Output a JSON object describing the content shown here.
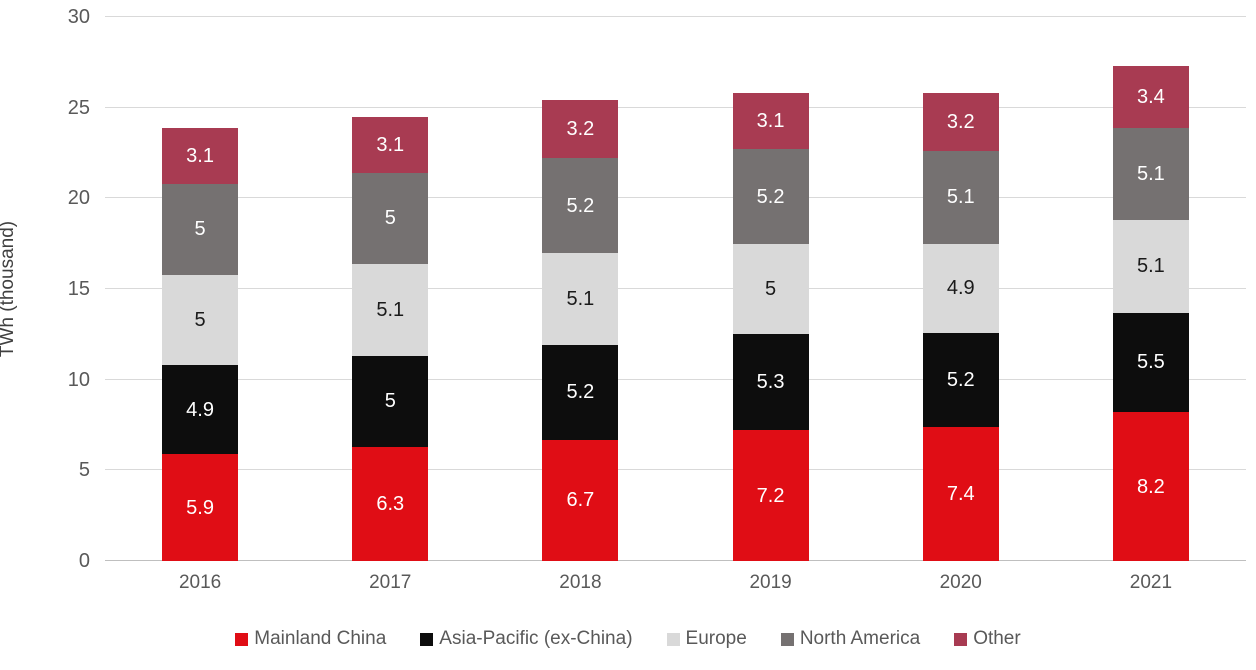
{
  "chart_data": {
    "type": "bar",
    "stacked": true,
    "title": "",
    "xlabel": "",
    "ylabel": "TWh (thousand)",
    "ylim": [
      0,
      30
    ],
    "ytick_step": 5,
    "yticks": [
      "0",
      "5",
      "10",
      "15",
      "20",
      "25",
      "30"
    ],
    "grid": true,
    "legend_position": "bottom",
    "categories": [
      "2016",
      "2017",
      "2018",
      "2019",
      "2020",
      "2021"
    ],
    "series": [
      {
        "name": "Mainland China",
        "color": "#e00d15",
        "label_color": "#ffffff",
        "values": [
          5.9,
          6.3,
          6.7,
          7.2,
          7.4,
          8.2
        ],
        "labels": [
          "5.9",
          "6.3",
          "6.7",
          "7.2",
          "7.4",
          "8.2"
        ]
      },
      {
        "name": "Asia-Pacific (ex-China)",
        "color": "#0d0d0d",
        "label_color": "#ffffff",
        "values": [
          4.9,
          5,
          5.2,
          5.3,
          5.2,
          5.5
        ],
        "labels": [
          "4.9",
          "5",
          "5.2",
          "5.3",
          "5.2",
          "5.5"
        ]
      },
      {
        "name": "Europe",
        "color": "#d9d9d9",
        "label_color": "#1a1a1a",
        "values": [
          5,
          5.1,
          5.1,
          5,
          4.9,
          5.1
        ],
        "labels": [
          "5",
          "5.1",
          "5.1",
          "5",
          "4.9",
          "5.1"
        ]
      },
      {
        "name": "North America",
        "color": "#757171",
        "label_color": "#ffffff",
        "values": [
          5,
          5,
          5.2,
          5.2,
          5.1,
          5.1
        ],
        "labels": [
          "5",
          "5",
          "5.2",
          "5.2",
          "5.1",
          "5.1"
        ]
      },
      {
        "name": "Other",
        "color": "#a83b52",
        "label_color": "#ffffff",
        "values": [
          3.1,
          3.1,
          3.2,
          3.1,
          3.2,
          3.4
        ],
        "labels": [
          "3.1",
          "3.1",
          "3.2",
          "3.1",
          "3.2",
          "3.4"
        ]
      }
    ],
    "colors": {
      "gridline": "#d9d9d9",
      "baseline": "#bfbfbf",
      "axis_text": "#595959",
      "axis_title_text": "#404040",
      "background": "#ffffff"
    }
  }
}
